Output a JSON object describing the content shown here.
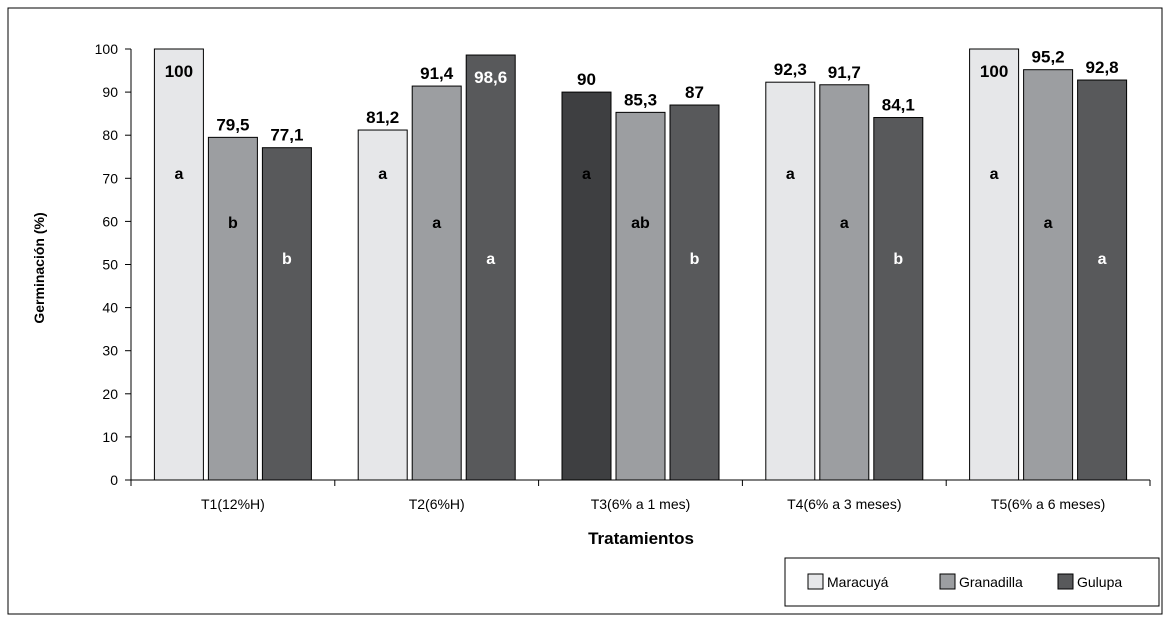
{
  "chart_data": {
    "type": "bar",
    "xlabel": "Tratamientos",
    "ylabel": "Germinación (%)",
    "ylim": [
      0,
      100
    ],
    "yticks": [
      0,
      10,
      20,
      30,
      40,
      50,
      60,
      70,
      80,
      90,
      100
    ],
    "categories": [
      "T1(12%H)",
      "T2(6%H)",
      "T3(6% a 1 mes)",
      "T4(6% a 3 meses)",
      "T5(6% a 6 meses)"
    ],
    "series": [
      {
        "name": "Maracuyá",
        "color": "#e6e7e9",
        "values": [
          100,
          81.2,
          90,
          92.3,
          100
        ],
        "value_labels": [
          "100",
          "81,2",
          "90",
          "92,3",
          "100"
        ],
        "letters": [
          "a",
          "a",
          "a",
          "a",
          "a"
        ]
      },
      {
        "name": "Granadilla",
        "color": "#9c9ea1",
        "values": [
          79.5,
          91.4,
          85.3,
          91.7,
          95.2
        ],
        "value_labels": [
          "79,5",
          "91,4",
          "85,3",
          "91,7",
          "95,2"
        ],
        "letters": [
          "b",
          "a",
          "ab",
          "a",
          "a"
        ]
      },
      {
        "name": "Gulupa",
        "color": "#58595b",
        "values": [
          77.1,
          98.6,
          87,
          84.1,
          92.8
        ],
        "value_labels": [
          "77,1",
          "98,6",
          "87",
          "84,1",
          "92,8"
        ],
        "letters": [
          "b",
          "a",
          "b",
          "b",
          "a"
        ]
      }
    ],
    "series_colors_override": {
      "0": {
        "2": "#3e3f41"
      }
    },
    "grid": false,
    "legend_position": "bottom-right"
  }
}
